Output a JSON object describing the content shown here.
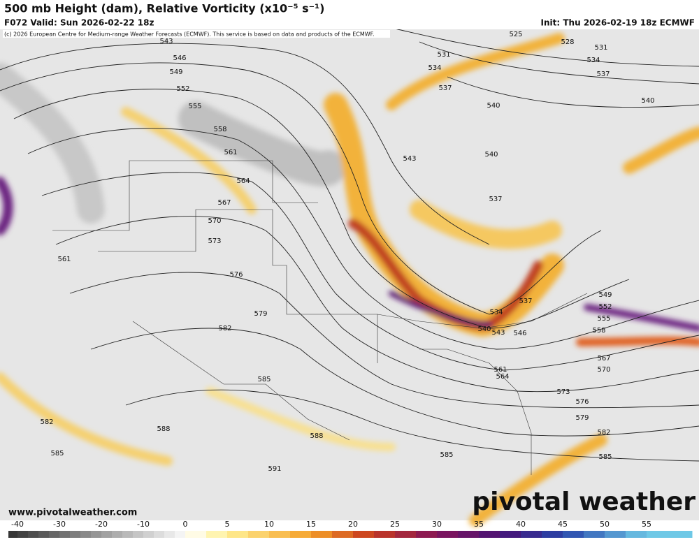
{
  "header": {
    "title": "500 mb Height (dam), Relative Vorticity (x10⁻⁵ s⁻¹)",
    "valid": "F072 Valid: Sun 2026-02-22 18z",
    "init": "Init: Thu 2026-02-19 18z ECMWF"
  },
  "credit": "(c) 2026 European Centre for Medium-range Weather Forecasts (ECMWF). This service is based on data and products of the ECMWF.",
  "contour_labels": [
    543,
    546,
    549,
    552,
    555,
    558,
    561,
    564,
    567,
    570,
    573,
    576,
    579,
    582,
    585,
    588,
    588,
    591,
    582,
    585,
    561,
    525,
    528,
    531,
    531,
    534,
    534,
    537,
    537,
    540,
    540,
    543,
    540,
    537,
    537,
    534,
    540,
    543,
    546,
    549,
    552,
    555,
    558,
    567,
    570,
    561,
    564,
    573,
    576,
    579,
    582,
    585,
    585
  ],
  "colorbar": {
    "ticks": [
      -40,
      -30,
      -20,
      -10,
      0,
      5,
      10,
      15,
      20,
      25,
      30,
      35,
      40,
      45,
      50,
      55
    ]
  },
  "website": "www.pivotalweather.com",
  "watermark": "pivotal weather"
}
